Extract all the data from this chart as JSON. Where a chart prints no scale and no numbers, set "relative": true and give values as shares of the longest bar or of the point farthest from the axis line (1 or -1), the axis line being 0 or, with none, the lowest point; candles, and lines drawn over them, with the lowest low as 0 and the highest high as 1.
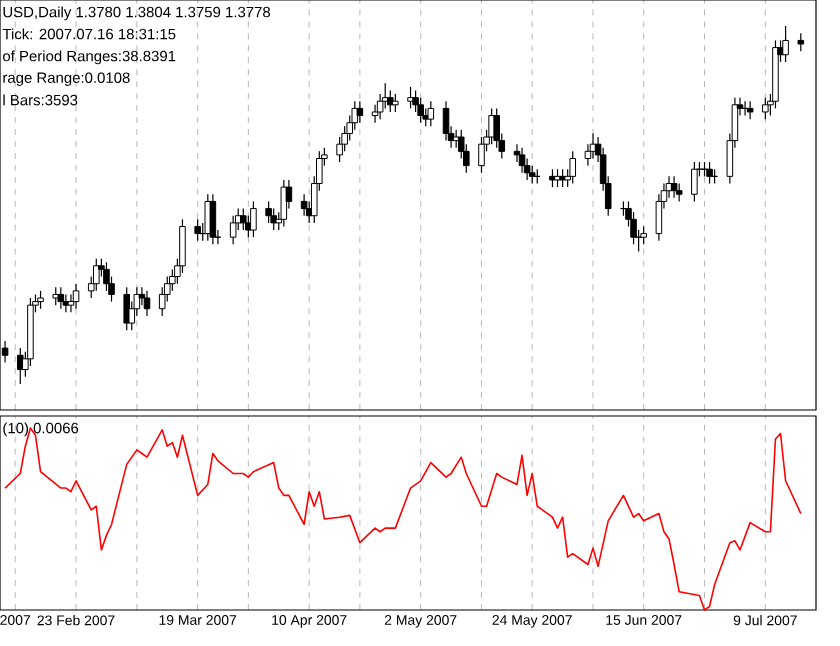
{
  "chart_data": [
    {
      "type": "candlestick",
      "relative": true,
      "color": "#000000",
      "grid": "x",
      "tick_labels": false,
      "xlim": [
        "2007-02-08",
        "2007-07-19"
      ],
      "xticks": [
        {
          "value": "2007-02-11",
          "label": null
        },
        {
          "value": "2007-02-23",
          "label": null
        },
        {
          "value": "2007-03-07",
          "label": null
        },
        {
          "value": "2007-03-19",
          "label": null
        },
        {
          "value": "2007-03-29",
          "label": null
        },
        {
          "value": "2007-04-10",
          "label": null
        },
        {
          "value": "2007-04-20",
          "label": null
        },
        {
          "value": "2007-05-02",
          "label": null
        },
        {
          "value": "2007-05-14",
          "label": null
        },
        {
          "value": "2007-05-24",
          "label": null
        },
        {
          "value": "2007-06-05",
          "label": null
        },
        {
          "value": "2007-06-15",
          "label": null
        },
        {
          "value": "2007-06-27",
          "label": null
        },
        {
          "value": "2007-07-09",
          "label": null
        }
      ],
      "annotations": [
        "USD,Daily  1.3780 1.3804 1.3759 1.3778",
        "Tick: 2007.07.16 18:31:15",
        "of Period Ranges:38.8391",
        "rage Range:0.0108",
        "l Bars:3593"
      ],
      "x": [
        "2007-02-09",
        "2007-02-12",
        "2007-02-13",
        "2007-02-14",
        "2007-02-15",
        "2007-02-16",
        "2007-02-19",
        "2007-02-20",
        "2007-02-21",
        "2007-02-22",
        "2007-02-23",
        "2007-02-26",
        "2007-02-27",
        "2007-02-28",
        "2007-03-01",
        "2007-03-02",
        "2007-03-05",
        "2007-03-06",
        "2007-03-07",
        "2007-03-08",
        "2007-03-09",
        "2007-03-12",
        "2007-03-13",
        "2007-03-14",
        "2007-03-15",
        "2007-03-16",
        "2007-03-19",
        "2007-03-20",
        "2007-03-21",
        "2007-03-22",
        "2007-03-23",
        "2007-03-26",
        "2007-03-27",
        "2007-03-28",
        "2007-03-29",
        "2007-03-30",
        "2007-04-02",
        "2007-04-03",
        "2007-04-04",
        "2007-04-05",
        "2007-04-06",
        "2007-04-09",
        "2007-04-10",
        "2007-04-11",
        "2007-04-12",
        "2007-04-13",
        "2007-04-16",
        "2007-04-17",
        "2007-04-18",
        "2007-04-19",
        "2007-04-20",
        "2007-04-23",
        "2007-04-24",
        "2007-04-25",
        "2007-04-26",
        "2007-04-27",
        "2007-04-30",
        "2007-05-01",
        "2007-05-02",
        "2007-05-03",
        "2007-05-04",
        "2007-05-07",
        "2007-05-08",
        "2007-05-09",
        "2007-05-10",
        "2007-05-11",
        "2007-05-14",
        "2007-05-15",
        "2007-05-16",
        "2007-05-17",
        "2007-05-18",
        "2007-05-21",
        "2007-05-22",
        "2007-05-23",
        "2007-05-24",
        "2007-05-25",
        "2007-05-28",
        "2007-05-29",
        "2007-05-30",
        "2007-05-31",
        "2007-06-01",
        "2007-06-04",
        "2007-06-05",
        "2007-06-06",
        "2007-06-07",
        "2007-06-08",
        "2007-06-11",
        "2007-06-12",
        "2007-06-13",
        "2007-06-14",
        "2007-06-15",
        "2007-06-18",
        "2007-06-19",
        "2007-06-20",
        "2007-06-21",
        "2007-06-22",
        "2007-06-25",
        "2007-06-26",
        "2007-06-27",
        "2007-06-28",
        "2007-06-29",
        "2007-07-02",
        "2007-07-03",
        "2007-07-04",
        "2007-07-05",
        "2007-07-06",
        "2007-07-09",
        "2007-07-10",
        "2007-07-11",
        "2007-07-12",
        "2007-07-13",
        "2007-07-16"
      ],
      "ohlc": [
        [
          0.1,
          0.12,
          0.06,
          0.08
        ],
        [
          0.08,
          0.1,
          0,
          0.04
        ],
        [
          0.04,
          0.09,
          0.02,
          0.07
        ],
        [
          0.07,
          0.24,
          0.05,
          0.22
        ],
        [
          0.22,
          0.25,
          0.2,
          0.23
        ],
        [
          0.23,
          0.26,
          0.21,
          0.24
        ],
        [
          0.24,
          0.27,
          0.22,
          0.25
        ],
        [
          0.25,
          0.27,
          0.21,
          0.23
        ],
        [
          0.23,
          0.25,
          0.2,
          0.22
        ],
        [
          0.22,
          0.25,
          0.2,
          0.23
        ],
        [
          0.23,
          0.28,
          0.21,
          0.26
        ],
        [
          0.26,
          0.3,
          0.24,
          0.28
        ],
        [
          0.28,
          0.35,
          0.26,
          0.33
        ],
        [
          0.33,
          0.35,
          0.3,
          0.32
        ],
        [
          0.32,
          0.34,
          0.26,
          0.28
        ],
        [
          0.28,
          0.3,
          0.23,
          0.25
        ],
        [
          0.25,
          0.27,
          0.15,
          0.17
        ],
        [
          0.17,
          0.23,
          0.15,
          0.21
        ],
        [
          0.21,
          0.27,
          0.19,
          0.25
        ],
        [
          0.25,
          0.27,
          0.22,
          0.24
        ],
        [
          0.24,
          0.26,
          0.19,
          0.21
        ],
        [
          0.21,
          0.27,
          0.19,
          0.25
        ],
        [
          0.25,
          0.3,
          0.23,
          0.28
        ],
        [
          0.28,
          0.32,
          0.26,
          0.3
        ],
        [
          0.3,
          0.35,
          0.28,
          0.33
        ],
        [
          0.33,
          0.46,
          0.31,
          0.44
        ],
        [
          0.44,
          0.46,
          0.4,
          0.42
        ],
        [
          0.42,
          0.45,
          0.4,
          0.42
        ],
        [
          0.42,
          0.53,
          0.4,
          0.51
        ],
        [
          0.51,
          0.53,
          0.39,
          0.41
        ],
        [
          0.41,
          0.43,
          0.39,
          0.41
        ],
        [
          0.41,
          0.47,
          0.39,
          0.45
        ],
        [
          0.45,
          0.49,
          0.43,
          0.47
        ],
        [
          0.47,
          0.49,
          0.43,
          0.45
        ],
        [
          0.45,
          0.47,
          0.41,
          0.43
        ],
        [
          0.43,
          0.51,
          0.41,
          0.49
        ],
        [
          0.49,
          0.51,
          0.45,
          0.47
        ],
        [
          0.47,
          0.49,
          0.43,
          0.45
        ],
        [
          0.45,
          0.48,
          0.43,
          0.46
        ],
        [
          0.46,
          0.57,
          0.44,
          0.55
        ],
        [
          0.55,
          0.57,
          0.49,
          0.51
        ],
        [
          0.51,
          0.53,
          0.47,
          0.49
        ],
        [
          0.49,
          0.51,
          0.45,
          0.47
        ],
        [
          0.47,
          0.58,
          0.45,
          0.56
        ],
        [
          0.56,
          0.65,
          0.54,
          0.63
        ],
        [
          0.63,
          0.66,
          0.61,
          0.64
        ],
        [
          0.64,
          0.69,
          0.62,
          0.67
        ],
        [
          0.67,
          0.72,
          0.65,
          0.7
        ],
        [
          0.7,
          0.75,
          0.68,
          0.73
        ],
        [
          0.73,
          0.79,
          0.71,
          0.77
        ],
        [
          0.77,
          0.79,
          0.73,
          0.75
        ],
        [
          0.75,
          0.78,
          0.73,
          0.76
        ],
        [
          0.76,
          0.81,
          0.74,
          0.79
        ],
        [
          0.79,
          0.84,
          0.77,
          0.8
        ],
        [
          0.8,
          0.82,
          0.76,
          0.78
        ],
        [
          0.78,
          0.81,
          0.76,
          0.79
        ],
        [
          0.79,
          0.83,
          0.77,
          0.8
        ],
        [
          0.8,
          0.82,
          0.76,
          0.78
        ],
        [
          0.78,
          0.8,
          0.73,
          0.75
        ],
        [
          0.75,
          0.77,
          0.72,
          0.74
        ],
        [
          0.74,
          0.79,
          0.72,
          0.77
        ],
        [
          0.77,
          0.79,
          0.68,
          0.7
        ],
        [
          0.7,
          0.72,
          0.66,
          0.68
        ],
        [
          0.68,
          0.71,
          0.66,
          0.69
        ],
        [
          0.69,
          0.71,
          0.63,
          0.65
        ],
        [
          0.65,
          0.67,
          0.59,
          0.61
        ],
        [
          0.61,
          0.69,
          0.59,
          0.67
        ],
        [
          0.67,
          0.71,
          0.65,
          0.69
        ],
        [
          0.69,
          0.77,
          0.67,
          0.75
        ],
        [
          0.75,
          0.77,
          0.66,
          0.68
        ],
        [
          0.68,
          0.7,
          0.63,
          0.65
        ],
        [
          0.65,
          0.67,
          0.62,
          0.64
        ],
        [
          0.64,
          0.66,
          0.59,
          0.61
        ],
        [
          0.61,
          0.63,
          0.57,
          0.59
        ],
        [
          0.59,
          0.61,
          0.56,
          0.58
        ],
        [
          0.58,
          0.6,
          0.56,
          0.58
        ],
        [
          0.58,
          0.6,
          0.55,
          0.57
        ],
        [
          0.57,
          0.6,
          0.55,
          0.58
        ],
        [
          0.58,
          0.6,
          0.55,
          0.57
        ],
        [
          0.57,
          0.6,
          0.55,
          0.58
        ],
        [
          0.58,
          0.65,
          0.56,
          0.63
        ],
        [
          0.63,
          0.67,
          0.61,
          0.65
        ],
        [
          0.65,
          0.7,
          0.63,
          0.67
        ],
        [
          0.67,
          0.69,
          0.62,
          0.64
        ],
        [
          0.64,
          0.66,
          0.54,
          0.56
        ],
        [
          0.56,
          0.58,
          0.47,
          0.49
        ],
        [
          0.49,
          0.51,
          0.47,
          0.49
        ],
        [
          0.49,
          0.51,
          0.44,
          0.46
        ],
        [
          0.46,
          0.48,
          0.39,
          0.41
        ],
        [
          0.41,
          0.43,
          0.37,
          0.41
        ],
        [
          0.41,
          0.44,
          0.39,
          0.42
        ],
        [
          0.42,
          0.53,
          0.4,
          0.51
        ],
        [
          0.51,
          0.56,
          0.49,
          0.54
        ],
        [
          0.54,
          0.58,
          0.52,
          0.56
        ],
        [
          0.56,
          0.58,
          0.52,
          0.54
        ],
        [
          0.54,
          0.56,
          0.51,
          0.53
        ],
        [
          0.53,
          0.62,
          0.51,
          0.6
        ],
        [
          0.6,
          0.62,
          0.58,
          0.6
        ],
        [
          0.6,
          0.62,
          0.58,
          0.6
        ],
        [
          0.6,
          0.62,
          0.56,
          0.58
        ],
        [
          0.58,
          0.6,
          0.56,
          0.58
        ],
        [
          0.58,
          0.7,
          0.56,
          0.68
        ],
        [
          0.68,
          0.8,
          0.66,
          0.78
        ],
        [
          0.78,
          0.8,
          0.75,
          0.77
        ],
        [
          0.77,
          0.79,
          0.75,
          0.77
        ],
        [
          0.77,
          0.79,
          0.74,
          0.76
        ],
        [
          0.76,
          0.8,
          0.74,
          0.78
        ],
        [
          0.78,
          0.81,
          0.75,
          0.79
        ],
        [
          0.79,
          0.96,
          0.77,
          0.94
        ],
        [
          0.94,
          0.96,
          0.9,
          0.92
        ],
        [
          0.92,
          1,
          0.9,
          0.96
        ],
        [
          0.96,
          0.98,
          0.93,
          0.95
        ]
      ]
    },
    {
      "type": "line",
      "relative": true,
      "color": "#ff0000",
      "grid": "x",
      "tick_labels": "x",
      "xlim": [
        "2007-02-08",
        "2007-07-19"
      ],
      "xticks": [
        {
          "value": "2007-02-11",
          "label": "2007"
        },
        {
          "value": "2007-02-23",
          "label": "23 Feb 2007"
        },
        {
          "value": "2007-03-07",
          "label": null
        },
        {
          "value": "2007-03-19",
          "label": "19 Mar 2007"
        },
        {
          "value": "2007-03-29",
          "label": null
        },
        {
          "value": "2007-04-10",
          "label": "10 Apr 2007"
        },
        {
          "value": "2007-04-20",
          "label": null
        },
        {
          "value": "2007-05-02",
          "label": "2 May 2007"
        },
        {
          "value": "2007-05-14",
          "label": null
        },
        {
          "value": "2007-05-24",
          "label": "24 May 2007"
        },
        {
          "value": "2007-06-05",
          "label": null
        },
        {
          "value": "2007-06-15",
          "label": "15 Jun 2007"
        },
        {
          "value": "2007-06-27",
          "label": null
        },
        {
          "value": "2007-07-09",
          "label": "9 Jul 2007"
        }
      ],
      "annotations": [
        "(10) 0.0066"
      ],
      "x": [
        "2007-02-09",
        "2007-02-12",
        "2007-02-13",
        "2007-02-14",
        "2007-02-15",
        "2007-02-16",
        "2007-02-20",
        "2007-02-21",
        "2007-02-22",
        "2007-02-23",
        "2007-02-26",
        "2007-02-27",
        "2007-02-28",
        "2007-03-01",
        "2007-03-02",
        "2007-03-05",
        "2007-03-06",
        "2007-03-07",
        "2007-03-08",
        "2007-03-09",
        "2007-03-12",
        "2007-03-13",
        "2007-03-14",
        "2007-03-15",
        "2007-03-16",
        "2007-03-19",
        "2007-03-21",
        "2007-03-22",
        "2007-03-23",
        "2007-03-26",
        "2007-03-28",
        "2007-03-29",
        "2007-03-30",
        "2007-04-03",
        "2007-04-04",
        "2007-04-05",
        "2007-04-06",
        "2007-04-09",
        "2007-04-10",
        "2007-04-11",
        "2007-04-12",
        "2007-04-13",
        "2007-04-16",
        "2007-04-18",
        "2007-04-20",
        "2007-04-23",
        "2007-04-24",
        "2007-04-25",
        "2007-04-27",
        "2007-04-30",
        "2007-05-02",
        "2007-05-04",
        "2007-05-07",
        "2007-05-08",
        "2007-05-10",
        "2007-05-11",
        "2007-05-14",
        "2007-05-15",
        "2007-05-17",
        "2007-05-18",
        "2007-05-21",
        "2007-05-22",
        "2007-05-23",
        "2007-05-24",
        "2007-05-25",
        "2007-05-28",
        "2007-05-29",
        "2007-05-30",
        "2007-05-31",
        "2007-06-01",
        "2007-06-04",
        "2007-06-05",
        "2007-06-06",
        "2007-06-08",
        "2007-06-11",
        "2007-06-13",
        "2007-06-14",
        "2007-06-15",
        "2007-06-18",
        "2007-06-19",
        "2007-06-20",
        "2007-06-21",
        "2007-06-22",
        "2007-06-26",
        "2007-06-27",
        "2007-06-28",
        "2007-06-29",
        "2007-07-02",
        "2007-07-03",
        "2007-07-04",
        "2007-07-06",
        "2007-07-09",
        "2007-07-10",
        "2007-07-11",
        "2007-07-12",
        "2007-07-13",
        "2007-07-16"
      ],
      "values": [
        0.67,
        0.75,
        0.9,
        1,
        0.96,
        0.76,
        0.67,
        0.67,
        0.65,
        0.71,
        0.55,
        0.57,
        0.33,
        0.41,
        0.47,
        0.8,
        0.84,
        0.88,
        0.86,
        0.84,
        0.99,
        0.9,
        0.92,
        0.84,
        0.96,
        0.63,
        0.69,
        0.86,
        0.82,
        0.75,
        0.75,
        0.73,
        0.76,
        0.81,
        0.67,
        0.63,
        0.63,
        0.47,
        0.65,
        0.57,
        0.65,
        0.5,
        0.51,
        0.52,
        0.37,
        0.45,
        0.43,
        0.45,
        0.45,
        0.67,
        0.71,
        0.81,
        0.73,
        0.75,
        0.84,
        0.75,
        0.57,
        0.57,
        0.75,
        0.73,
        0.69,
        0.85,
        0.63,
        0.75,
        0.57,
        0.51,
        0.45,
        0.51,
        0.29,
        0.31,
        0.25,
        0.34,
        0.24,
        0.49,
        0.63,
        0.51,
        0.53,
        0.49,
        0.53,
        0.43,
        0.39,
        0.25,
        0.1,
        0.08,
        0,
        0.02,
        0.14,
        0.37,
        0.38,
        0.33,
        0.48,
        0.43,
        0.43,
        0.94,
        0.97,
        0.71,
        0.53
      ]
    }
  ]
}
